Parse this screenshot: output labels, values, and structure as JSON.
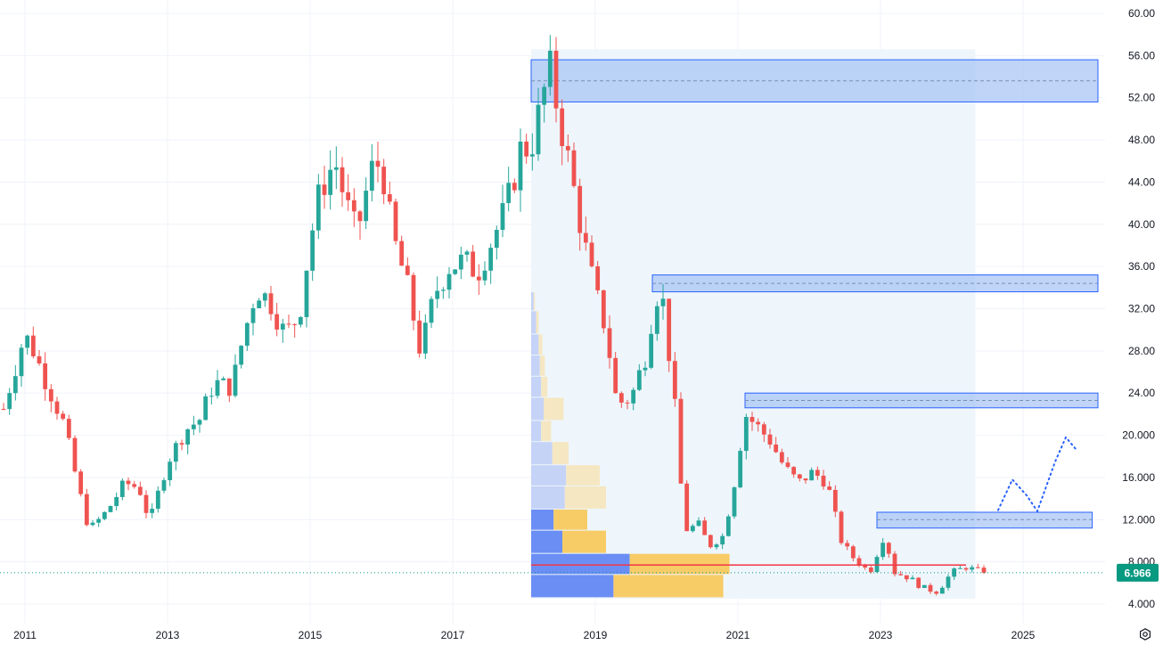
{
  "chart_data": {
    "type": "candlestick",
    "title": "",
    "xlabel": "",
    "ylabel": "",
    "last_price": "6.966",
    "xlim": [
      2010.7,
      2026.5
    ],
    "ylim": [
      3.4,
      61.0
    ],
    "x_ticks": [
      {
        "value": 2011,
        "label": "2011"
      },
      {
        "value": 2013,
        "label": "2013"
      },
      {
        "value": 2015,
        "label": "2015"
      },
      {
        "value": 2017,
        "label": "2017"
      },
      {
        "value": 2019,
        "label": "2019"
      },
      {
        "value": 2021,
        "label": "2021"
      },
      {
        "value": 2023,
        "label": "2023"
      },
      {
        "value": 2025,
        "label": "2025"
      }
    ],
    "y_ticks": [
      {
        "value": 60,
        "label": "60.00"
      },
      {
        "value": 56,
        "label": "56.00"
      },
      {
        "value": 52,
        "label": "52.00"
      },
      {
        "value": 48,
        "label": "48.00"
      },
      {
        "value": 44,
        "label": "44.00"
      },
      {
        "value": 40,
        "label": "40.00"
      },
      {
        "value": 36,
        "label": "36.00"
      },
      {
        "value": 32,
        "label": "32.00"
      },
      {
        "value": 28,
        "label": "28.00"
      },
      {
        "value": 24,
        "label": "24.00"
      },
      {
        "value": 20,
        "label": "20.000"
      },
      {
        "value": 16,
        "label": "16.000"
      },
      {
        "value": 12,
        "label": "12.000"
      },
      {
        "value": 8,
        "label": "8.000"
      },
      {
        "value": 4,
        "label": "4.000"
      }
    ],
    "grid": true,
    "colors": {
      "up": "#26a69a",
      "down": "#ef5350",
      "zone_fill": "#a7c4f5",
      "zone_border": "#2962ff",
      "range_fill": "#eef6fc",
      "poc_line": "#f23645",
      "projection": "#2962ff",
      "last_price_badge": "#089981",
      "grid": "#f0f3fa",
      "vp_up": "#6b8ef5",
      "vp_down": "#f7cc67",
      "vp_up_light": "#c5d3f7",
      "vp_down_light": "#f5e7c2"
    },
    "anchors": [
      {
        "t": 2010.7,
        "p": 22.5
      },
      {
        "t": 2010.95,
        "p": 28.5
      },
      {
        "t": 2011.05,
        "p": 29.2
      },
      {
        "t": 2011.3,
        "p": 25.0
      },
      {
        "t": 2011.55,
        "p": 21.0
      },
      {
        "t": 2011.75,
        "p": 15.0
      },
      {
        "t": 2011.9,
        "p": 11.0
      },
      {
        "t": 2012.15,
        "p": 12.8
      },
      {
        "t": 2012.4,
        "p": 15.5
      },
      {
        "t": 2012.6,
        "p": 15.0
      },
      {
        "t": 2012.75,
        "p": 11.8
      },
      {
        "t": 2013.0,
        "p": 17.5
      },
      {
        "t": 2013.25,
        "p": 20.5
      },
      {
        "t": 2013.45,
        "p": 21.5
      },
      {
        "t": 2013.65,
        "p": 25.0
      },
      {
        "t": 2013.9,
        "p": 24.5
      },
      {
        "t": 2014.05,
        "p": 29.0
      },
      {
        "t": 2014.25,
        "p": 34.0
      },
      {
        "t": 2014.45,
        "p": 32.5
      },
      {
        "t": 2014.65,
        "p": 29.5
      },
      {
        "t": 2014.85,
        "p": 31.5
      },
      {
        "t": 2015.0,
        "p": 38.5
      },
      {
        "t": 2015.15,
        "p": 43.5
      },
      {
        "t": 2015.35,
        "p": 46.0
      },
      {
        "t": 2015.5,
        "p": 42.0
      },
      {
        "t": 2015.65,
        "p": 39.0
      },
      {
        "t": 2015.85,
        "p": 45.0
      },
      {
        "t": 2016.0,
        "p": 46.0
      },
      {
        "t": 2016.15,
        "p": 39.0
      },
      {
        "t": 2016.35,
        "p": 34.5
      },
      {
        "t": 2016.55,
        "p": 27.8
      },
      {
        "t": 2016.75,
        "p": 33.5
      },
      {
        "t": 2016.95,
        "p": 36.0
      },
      {
        "t": 2017.15,
        "p": 36.5
      },
      {
        "t": 2017.35,
        "p": 35.5
      },
      {
        "t": 2017.55,
        "p": 38.5
      },
      {
        "t": 2017.75,
        "p": 41.5
      },
      {
        "t": 2017.95,
        "p": 47.0
      },
      {
        "t": 2018.1,
        "p": 47.5
      },
      {
        "t": 2018.25,
        "p": 51.5
      },
      {
        "t": 2018.35,
        "p": 55.0
      },
      {
        "t": 2018.5,
        "p": 50.0
      },
      {
        "t": 2018.65,
        "p": 45.0
      },
      {
        "t": 2018.85,
        "p": 38.0
      },
      {
        "t": 2019.0,
        "p": 33.5
      },
      {
        "t": 2019.15,
        "p": 30.0
      },
      {
        "t": 2019.3,
        "p": 23.0
      },
      {
        "t": 2019.5,
        "p": 23.5
      },
      {
        "t": 2019.7,
        "p": 27.5
      },
      {
        "t": 2019.85,
        "p": 33.5
      },
      {
        "t": 2019.95,
        "p": 32.5
      },
      {
        "t": 2020.1,
        "p": 24.0
      },
      {
        "t": 2020.25,
        "p": 11.0
      },
      {
        "t": 2020.45,
        "p": 11.5
      },
      {
        "t": 2020.6,
        "p": 9.5
      },
      {
        "t": 2020.8,
        "p": 10.5
      },
      {
        "t": 2020.95,
        "p": 15.5
      },
      {
        "t": 2021.1,
        "p": 22.0
      },
      {
        "t": 2021.25,
        "p": 21.0
      },
      {
        "t": 2021.45,
        "p": 19.5
      },
      {
        "t": 2021.65,
        "p": 17.0
      },
      {
        "t": 2021.85,
        "p": 15.5
      },
      {
        "t": 2022.05,
        "p": 16.5
      },
      {
        "t": 2022.25,
        "p": 15.5
      },
      {
        "t": 2022.45,
        "p": 10.0
      },
      {
        "t": 2022.6,
        "p": 8.5
      },
      {
        "t": 2022.85,
        "p": 7.0
      },
      {
        "t": 2023.05,
        "p": 10.5
      },
      {
        "t": 2023.2,
        "p": 7.0
      },
      {
        "t": 2023.4,
        "p": 6.5
      },
      {
        "t": 2023.6,
        "p": 5.5
      },
      {
        "t": 2023.8,
        "p": 5.2
      },
      {
        "t": 2024.0,
        "p": 7.0
      },
      {
        "t": 2024.2,
        "p": 7.5
      },
      {
        "t": 2024.45,
        "p": 6.97
      }
    ],
    "zones": [
      {
        "t1": 2018.1,
        "t2": 2026.05,
        "top": 55.6,
        "bottom": 51.6,
        "mid": 53.6
      },
      {
        "t1": 2019.8,
        "t2": 2026.05,
        "top": 35.2,
        "bottom": 33.6,
        "mid": 34.4
      },
      {
        "t1": 2021.1,
        "t2": 2026.05,
        "top": 24.0,
        "bottom": 22.6,
        "mid": 23.3
      },
      {
        "t1": 2022.95,
        "t2": 2025.97,
        "top": 12.7,
        "bottom": 11.2,
        "mid": 12.0
      }
    ],
    "range_box": {
      "t1": 2018.1,
      "t2": 2024.33,
      "top": 56.6,
      "bottom": 4.5
    },
    "poc_line": {
      "t1": 2018.1,
      "t2": 2024.2,
      "p": 7.7
    },
    "projection": [
      {
        "t": 2024.65,
        "p": 12.9
      },
      {
        "t": 2024.85,
        "p": 15.8
      },
      {
        "t": 2025.05,
        "p": 14.3
      },
      {
        "t": 2025.2,
        "p": 12.8
      },
      {
        "t": 2025.45,
        "p": 17.5
      },
      {
        "t": 2025.6,
        "p": 19.8
      },
      {
        "t": 2025.75,
        "p": 18.6
      }
    ],
    "volume_profile": [
      {
        "top": 33.6,
        "bottom": 31.8,
        "up": 0.02,
        "down": 0.01
      },
      {
        "top": 31.8,
        "bottom": 29.6,
        "up": 0.04,
        "down": 0.02
      },
      {
        "top": 29.6,
        "bottom": 27.6,
        "up": 0.06,
        "down": 0.03
      },
      {
        "top": 27.6,
        "bottom": 25.6,
        "up": 0.07,
        "down": 0.04
      },
      {
        "top": 25.6,
        "bottom": 23.6,
        "up": 0.08,
        "down": 0.05
      },
      {
        "top": 23.6,
        "bottom": 21.4,
        "up": 0.1,
        "down": 0.16
      },
      {
        "top": 21.4,
        "bottom": 19.4,
        "up": 0.08,
        "down": 0.08
      },
      {
        "top": 19.4,
        "bottom": 17.2,
        "up": 0.17,
        "down": 0.13
      },
      {
        "top": 17.2,
        "bottom": 15.2,
        "up": 0.28,
        "down": 0.27
      },
      {
        "top": 15.2,
        "bottom": 13.0,
        "up": 0.27,
        "down": 0.33
      },
      {
        "top": 13.0,
        "bottom": 11.0,
        "up": 0.18,
        "down": 0.27
      },
      {
        "top": 11.0,
        "bottom": 8.8,
        "up": 0.25,
        "down": 0.35
      },
      {
        "top": 8.8,
        "bottom": 6.8,
        "up": 0.79,
        "down": 0.8
      },
      {
        "top": 6.8,
        "bottom": 4.6,
        "up": 0.66,
        "down": 0.88
      }
    ]
  },
  "ui": {
    "settings_icon": "gear-icon"
  }
}
